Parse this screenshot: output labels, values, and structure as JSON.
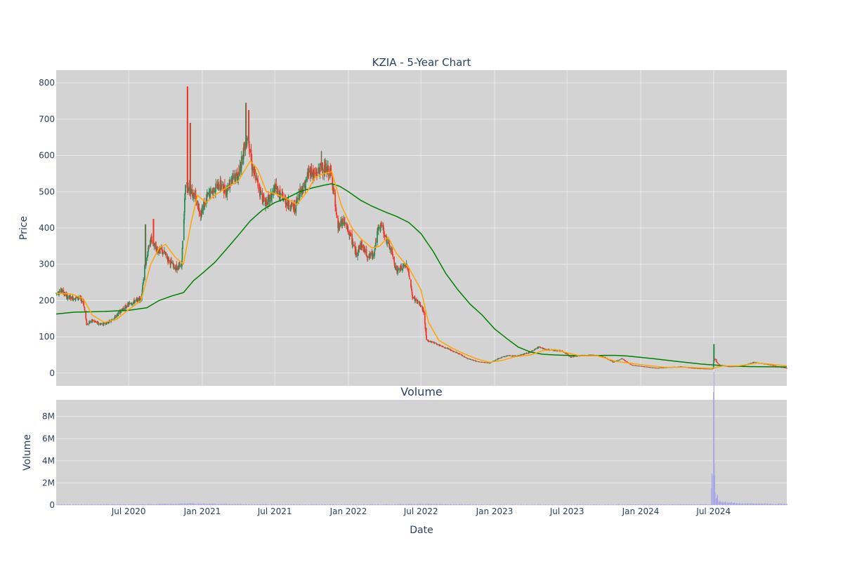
{
  "chart_data": [
    {
      "type": "candlestick",
      "title": "KZIA - 5-Year Chart",
      "xlabel": "",
      "ylabel": "Price",
      "ylim": [
        -35,
        835
      ],
      "x_range": [
        "2020-01-02",
        "2024-12-31"
      ],
      "x_ticks": [
        {
          "date": "2020-07-01",
          "label": "Jul 2020"
        },
        {
          "date": "2021-01-01",
          "label": "Jan 2021"
        },
        {
          "date": "2021-07-01",
          "label": "Jul 2021"
        },
        {
          "date": "2022-01-01",
          "label": "Jan 2022"
        },
        {
          "date": "2022-07-01",
          "label": "Jul 2022"
        },
        {
          "date": "2023-01-01",
          "label": "Jan 2023"
        },
        {
          "date": "2023-07-01",
          "label": "Jul 2023"
        },
        {
          "date": "2024-01-01",
          "label": "Jan 2024"
        },
        {
          "date": "2024-07-01",
          "label": "Jul 2024"
        }
      ],
      "y_ticks": [
        {
          "value": 0,
          "label": "0"
        },
        {
          "value": 100,
          "label": "100"
        },
        {
          "value": 200,
          "label": "200"
        },
        {
          "value": 300,
          "label": "300"
        },
        {
          "value": 400,
          "label": "400"
        },
        {
          "value": 500,
          "label": "500"
        },
        {
          "value": 600,
          "label": "600"
        },
        {
          "value": 700,
          "label": "700"
        },
        {
          "value": 800,
          "label": "800"
        }
      ],
      "grid": true,
      "colors": {
        "plot_bg": "#d3d3d3",
        "grid": "#e8e8ee",
        "up": "#2e8b57",
        "down": "#ef3b2c",
        "ma_short": "#ffa500",
        "ma_long": "#008000"
      },
      "price_path": [
        [
          "2020-01-02",
          220
        ],
        [
          "2020-01-15",
          228
        ],
        [
          "2020-01-30",
          210
        ],
        [
          "2020-02-15",
          206
        ],
        [
          "2020-02-28",
          208
        ],
        [
          "2020-03-10",
          195
        ],
        [
          "2020-03-18",
          135
        ],
        [
          "2020-04-01",
          145
        ],
        [
          "2020-04-20",
          135
        ],
        [
          "2020-05-10",
          140
        ],
        [
          "2020-05-25",
          150
        ],
        [
          "2020-06-10",
          170
        ],
        [
          "2020-06-25",
          185
        ],
        [
          "2020-07-10",
          195
        ],
        [
          "2020-08-01",
          205
        ],
        [
          "2020-08-10",
          290
        ],
        [
          "2020-08-25",
          370
        ],
        [
          "2020-09-10",
          340
        ],
        [
          "2020-09-25",
          335
        ],
        [
          "2020-10-10",
          310
        ],
        [
          "2020-10-25",
          290
        ],
        [
          "2020-11-10",
          295
        ],
        [
          "2020-11-20",
          520
        ],
        [
          "2020-12-01",
          510
        ],
        [
          "2020-12-15",
          480
        ],
        [
          "2020-12-28",
          440
        ],
        [
          "2021-01-15",
          490
        ],
        [
          "2021-02-01",
          510
        ],
        [
          "2021-02-15",
          520
        ],
        [
          "2021-03-01",
          500
        ],
        [
          "2021-03-15",
          540
        ],
        [
          "2021-04-01",
          540
        ],
        [
          "2021-04-15",
          620
        ],
        [
          "2021-04-25",
          660
        ],
        [
          "2021-05-05",
          570
        ],
        [
          "2021-05-20",
          520
        ],
        [
          "2021-06-05",
          470
        ],
        [
          "2021-06-20",
          480
        ],
        [
          "2021-07-01",
          510
        ],
        [
          "2021-07-15",
          490
        ],
        [
          "2021-08-01",
          470
        ],
        [
          "2021-08-20",
          455
        ],
        [
          "2021-09-01",
          500
        ],
        [
          "2021-09-15",
          520
        ],
        [
          "2021-09-25",
          560
        ],
        [
          "2021-10-10",
          545
        ],
        [
          "2021-10-25",
          570
        ],
        [
          "2021-11-05",
          560
        ],
        [
          "2021-11-20",
          550
        ],
        [
          "2021-11-28",
          470
        ],
        [
          "2021-12-05",
          400
        ],
        [
          "2021-12-20",
          420
        ],
        [
          "2022-01-05",
          380
        ],
        [
          "2022-01-20",
          330
        ],
        [
          "2022-02-01",
          355
        ],
        [
          "2022-02-20",
          320
        ],
        [
          "2022-03-05",
          330
        ],
        [
          "2022-03-15",
          390
        ],
        [
          "2022-03-25",
          410
        ],
        [
          "2022-04-05",
          370
        ],
        [
          "2022-04-20",
          330
        ],
        [
          "2022-05-01",
          280
        ],
        [
          "2022-05-15",
          290
        ],
        [
          "2022-05-28",
          300
        ],
        [
          "2022-06-10",
          210
        ],
        [
          "2022-06-28",
          190
        ],
        [
          "2022-07-08",
          170
        ],
        [
          "2022-07-15",
          90
        ],
        [
          "2022-08-01",
          85
        ],
        [
          "2022-08-20",
          75
        ],
        [
          "2022-09-10",
          65
        ],
        [
          "2022-10-01",
          55
        ],
        [
          "2022-10-25",
          40
        ],
        [
          "2022-11-20",
          32
        ],
        [
          "2022-12-20",
          28
        ],
        [
          "2023-01-10",
          40
        ],
        [
          "2023-02-01",
          48
        ],
        [
          "2023-03-01",
          48
        ],
        [
          "2023-04-01",
          58
        ],
        [
          "2023-04-20",
          72
        ],
        [
          "2023-05-10",
          65
        ],
        [
          "2023-06-01",
          63
        ],
        [
          "2023-06-20",
          60
        ],
        [
          "2023-07-10",
          45
        ],
        [
          "2023-08-01",
          48
        ],
        [
          "2023-09-01",
          50
        ],
        [
          "2023-10-01",
          45
        ],
        [
          "2023-10-25",
          30
        ],
        [
          "2023-11-15",
          40
        ],
        [
          "2023-12-10",
          22
        ],
        [
          "2024-01-10",
          18
        ],
        [
          "2024-02-10",
          14
        ],
        [
          "2024-03-10",
          16
        ],
        [
          "2024-04-10",
          18
        ],
        [
          "2024-05-10",
          14
        ],
        [
          "2024-06-15",
          12
        ],
        [
          "2024-06-28",
          12
        ],
        [
          "2024-07-03",
          40
        ],
        [
          "2024-07-15",
          22
        ],
        [
          "2024-08-10",
          18
        ],
        [
          "2024-09-10",
          20
        ],
        [
          "2024-10-10",
          30
        ],
        [
          "2024-11-10",
          25
        ],
        [
          "2024-12-10",
          18
        ],
        [
          "2024-12-31",
          14
        ]
      ],
      "spikes": [
        [
          "2020-08-12",
          410
        ],
        [
          "2020-09-01",
          425
        ],
        [
          "2020-11-25",
          790
        ],
        [
          "2020-12-02",
          690
        ],
        [
          "2021-04-20",
          745
        ],
        [
          "2021-04-27",
          725
        ],
        [
          "2021-10-25",
          612
        ],
        [
          "2022-07-15",
          125
        ],
        [
          "2024-07-02",
          80
        ]
      ],
      "ma_short_path": [
        [
          "2020-01-02",
          220
        ],
        [
          "2020-02-10",
          218
        ],
        [
          "2020-03-10",
          205
        ],
        [
          "2020-04-01",
          160
        ],
        [
          "2020-05-01",
          140
        ],
        [
          "2020-06-01",
          148
        ],
        [
          "2020-07-01",
          175
        ],
        [
          "2020-08-01",
          200
        ],
        [
          "2020-08-25",
          300
        ],
        [
          "2020-09-15",
          345
        ],
        [
          "2020-10-01",
          355
        ],
        [
          "2020-10-25",
          320
        ],
        [
          "2020-11-15",
          300
        ],
        [
          "2020-12-05",
          420
        ],
        [
          "2020-12-20",
          490
        ],
        [
          "2021-01-10",
          470
        ],
        [
          "2021-02-01",
          490
        ],
        [
          "2021-03-01",
          510
        ],
        [
          "2021-04-01",
          530
        ],
        [
          "2021-05-01",
          585
        ],
        [
          "2021-05-20",
          560
        ],
        [
          "2021-06-10",
          500
        ],
        [
          "2021-07-01",
          495
        ],
        [
          "2021-08-01",
          480
        ],
        [
          "2021-08-25",
          465
        ],
        [
          "2021-09-20",
          500
        ],
        [
          "2021-10-10",
          540
        ],
        [
          "2021-11-01",
          550
        ],
        [
          "2021-11-20",
          555
        ],
        [
          "2021-12-15",
          460
        ],
        [
          "2022-01-10",
          400
        ],
        [
          "2022-02-01",
          370
        ],
        [
          "2022-03-01",
          345
        ],
        [
          "2022-03-20",
          350
        ],
        [
          "2022-04-10",
          375
        ],
        [
          "2022-05-01",
          330
        ],
        [
          "2022-06-01",
          290
        ],
        [
          "2022-07-01",
          230
        ],
        [
          "2022-07-20",
          140
        ],
        [
          "2022-08-15",
          90
        ],
        [
          "2022-09-15",
          70
        ],
        [
          "2022-10-20",
          52
        ],
        [
          "2022-11-20",
          38
        ],
        [
          "2022-12-20",
          30
        ],
        [
          "2023-01-20",
          35
        ],
        [
          "2023-02-20",
          45
        ],
        [
          "2023-04-01",
          50
        ],
        [
          "2023-05-01",
          62
        ],
        [
          "2023-06-01",
          65
        ],
        [
          "2023-07-01",
          56
        ],
        [
          "2023-08-01",
          48
        ],
        [
          "2023-09-15",
          48
        ],
        [
          "2023-11-01",
          32
        ],
        [
          "2023-12-01",
          28
        ],
        [
          "2024-01-10",
          22
        ],
        [
          "2024-03-01",
          16
        ],
        [
          "2024-05-01",
          16
        ],
        [
          "2024-06-25",
          13
        ],
        [
          "2024-07-25",
          20
        ],
        [
          "2024-09-01",
          20
        ],
        [
          "2024-10-20",
          28
        ],
        [
          "2024-12-31",
          20
        ]
      ],
      "ma_long_path": [
        [
          "2020-01-02",
          163
        ],
        [
          "2020-02-15",
          168
        ],
        [
          "2020-05-01",
          170
        ],
        [
          "2020-07-01",
          173
        ],
        [
          "2020-08-15",
          180
        ],
        [
          "2020-09-15",
          200
        ],
        [
          "2020-10-15",
          212
        ],
        [
          "2020-11-15",
          222
        ],
        [
          "2020-12-10",
          255
        ],
        [
          "2021-01-01",
          275
        ],
        [
          "2021-02-01",
          305
        ],
        [
          "2021-03-01",
          340
        ],
        [
          "2021-04-01",
          380
        ],
        [
          "2021-05-01",
          420
        ],
        [
          "2021-06-01",
          450
        ],
        [
          "2021-07-01",
          470
        ],
        [
          "2021-08-01",
          483
        ],
        [
          "2021-09-01",
          500
        ],
        [
          "2021-10-01",
          510
        ],
        [
          "2021-11-01",
          518
        ],
        [
          "2021-11-20",
          522
        ],
        [
          "2021-12-10",
          515
        ],
        [
          "2022-01-01",
          500
        ],
        [
          "2022-02-01",
          476
        ],
        [
          "2022-03-01",
          460
        ],
        [
          "2022-04-01",
          445
        ],
        [
          "2022-05-01",
          432
        ],
        [
          "2022-06-01",
          415
        ],
        [
          "2022-07-01",
          385
        ],
        [
          "2022-08-01",
          335
        ],
        [
          "2022-09-01",
          275
        ],
        [
          "2022-10-01",
          230
        ],
        [
          "2022-11-01",
          190
        ],
        [
          "2022-12-01",
          160
        ],
        [
          "2023-01-01",
          122
        ],
        [
          "2023-02-01",
          95
        ],
        [
          "2023-03-01",
          72
        ],
        [
          "2023-04-01",
          58
        ],
        [
          "2023-05-01",
          52
        ],
        [
          "2023-06-01",
          50
        ],
        [
          "2023-07-01",
          49
        ],
        [
          "2023-09-01",
          48
        ],
        [
          "2023-10-01",
          49
        ],
        [
          "2023-11-01",
          49
        ],
        [
          "2023-12-01",
          47
        ],
        [
          "2024-02-01",
          40
        ],
        [
          "2024-04-01",
          32
        ],
        [
          "2024-06-01",
          25
        ],
        [
          "2024-08-01",
          20
        ],
        [
          "2024-10-01",
          18
        ],
        [
          "2024-12-31",
          17
        ]
      ]
    },
    {
      "type": "bar",
      "title": "Volume",
      "xlabel": "Date",
      "ylabel": "Volume",
      "ylim": [
        0,
        9500000
      ],
      "y_ticks": [
        {
          "value": 0,
          "label": "0"
        },
        {
          "value": 2000000,
          "label": "2M"
        },
        {
          "value": 4000000,
          "label": "4M"
        },
        {
          "value": 6000000,
          "label": "6M"
        },
        {
          "value": 8000000,
          "label": "8M"
        }
      ],
      "x_tick_labels": [
        "Jul 2020",
        "Jan 2021",
        "Jul 2021",
        "Jan 2022",
        "Jul 2022",
        "Jan 2023",
        "Jul 2023",
        "Jan 2024",
        "Jul 2024"
      ],
      "grid": true,
      "colors": {
        "plot_bg": "#d3d3d3",
        "bar": "#aaa6e8"
      },
      "volume_path": [
        [
          "2020-01-02",
          40000
        ],
        [
          "2020-08-15",
          60000
        ],
        [
          "2020-11-25",
          120000
        ],
        [
          "2021-05-01",
          60000
        ],
        [
          "2022-01-01",
          40000
        ],
        [
          "2022-07-15",
          80000
        ],
        [
          "2023-01-01",
          30000
        ],
        [
          "2023-07-01",
          30000
        ],
        [
          "2024-01-01",
          50000
        ],
        [
          "2024-06-25",
          60000
        ],
        [
          "2024-07-02",
          9100000
        ],
        [
          "2024-07-05",
          1200000
        ],
        [
          "2024-07-15",
          300000
        ],
        [
          "2024-09-01",
          120000
        ],
        [
          "2024-12-31",
          90000
        ]
      ]
    }
  ]
}
